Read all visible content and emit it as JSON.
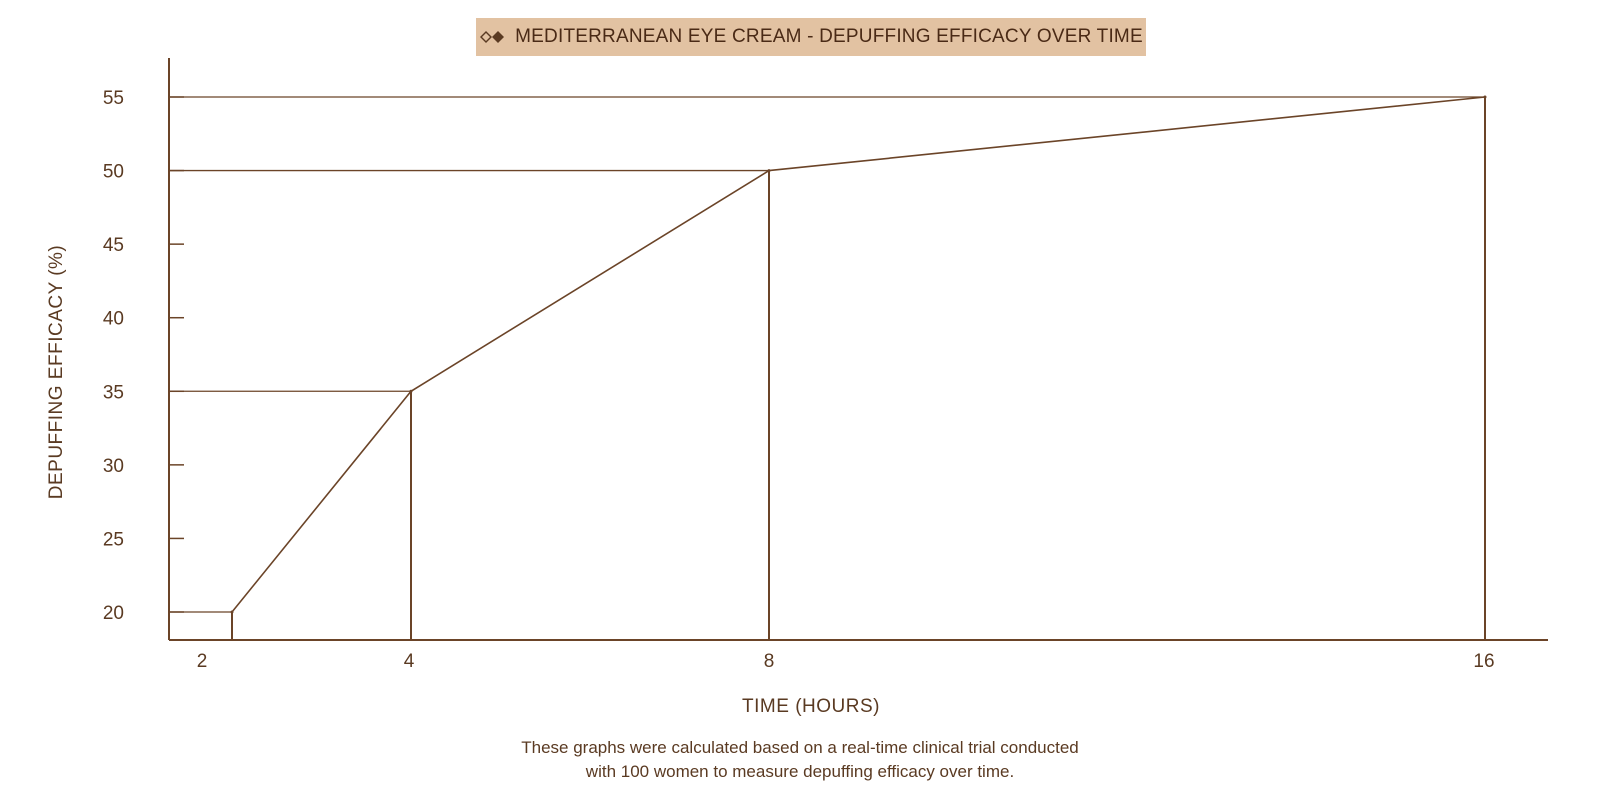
{
  "chart_data": {
    "type": "line",
    "title": "MEDITERRANEAN EYE CREAM - DEPUFFING EFFICACY OVER TIME",
    "xlabel": "TIME (HOURS)",
    "ylabel": "DEPUFFING EFFICACY (%)",
    "x_ticks": [
      2,
      4,
      8,
      16
    ],
    "y_ticks": [
      20,
      25,
      30,
      35,
      40,
      45,
      50,
      55
    ],
    "series": [
      {
        "x": [
          2,
          4,
          8,
          16
        ],
        "values": [
          20,
          35,
          50,
          55
        ]
      }
    ],
    "grid": false,
    "colors": {
      "line": "#6b4428",
      "title_bg": "#e2c2a2"
    }
  },
  "footnote": {
    "line1": "These graphs were calculated based on a real-time clinical trial conducted",
    "line2": "with 100 women to measure depuffing efficacy over time."
  },
  "icons": {
    "title_logo": "double-diamond-icon"
  }
}
